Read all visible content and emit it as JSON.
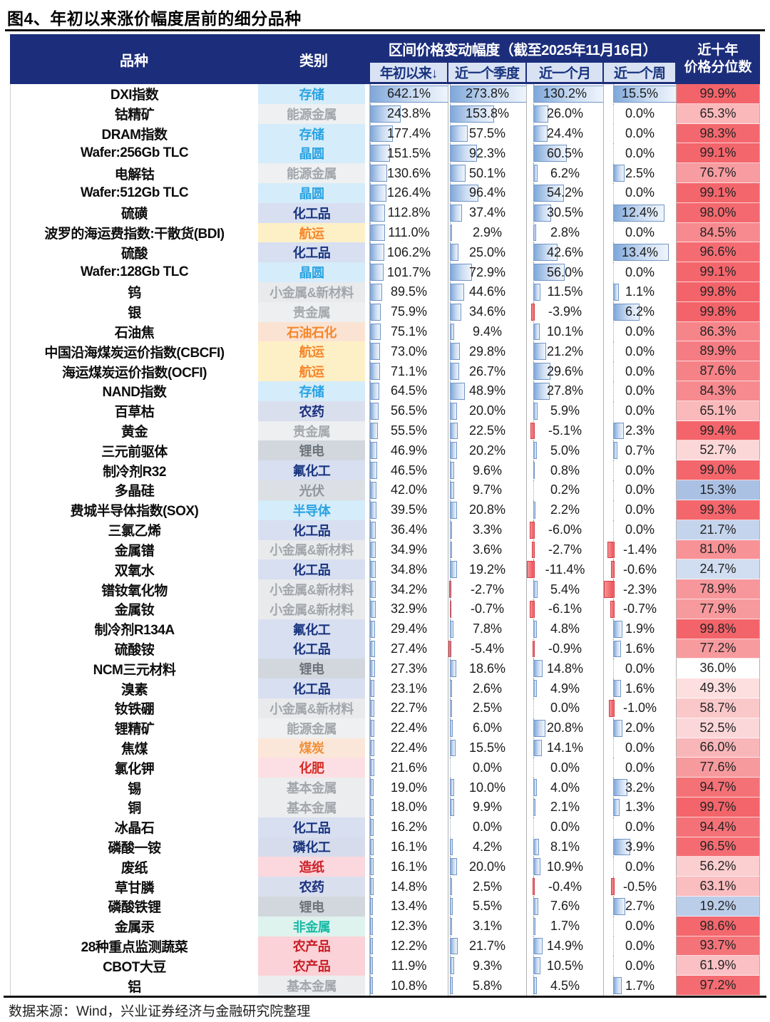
{
  "title": "图4、年初以来涨价幅度居前的细分品种",
  "source_note": "数据来源：Wind，兴业证券经济与金融研究院整理",
  "table": {
    "header": {
      "product": "品种",
      "category": "类别",
      "group": "区间价格变动幅度（截至2025年11月16日）",
      "periods": [
        "年初以来↓",
        "近一个季度",
        "近一个月",
        "近一个周"
      ],
      "percentile_line1": "近十年",
      "percentile_line2": "价格分位数"
    },
    "columns": [
      "品种",
      "类别",
      "年初以来",
      "近一个季度",
      "近一个月",
      "近一个周",
      "近十年价格分位数"
    ],
    "rows": [
      [
        "DXI指数",
        "存储",
        642.1,
        273.8,
        130.2,
        15.5,
        99.9
      ],
      [
        "钴精矿",
        "能源金属",
        243.8,
        153.8,
        26.0,
        0.0,
        65.3
      ],
      [
        "DRAM指数",
        "存储",
        177.4,
        57.5,
        24.4,
        0.0,
        98.3
      ],
      [
        "Wafer:256Gb TLC",
        "晶圆",
        151.5,
        92.3,
        60.5,
        0.0,
        99.1
      ],
      [
        "电解钴",
        "能源金属",
        130.6,
        50.1,
        6.2,
        2.5,
        76.7
      ],
      [
        "Wafer:512Gb TLC",
        "晶圆",
        126.4,
        96.4,
        54.2,
        0.0,
        99.1
      ],
      [
        "硫磺",
        "化工品",
        112.8,
        37.4,
        30.5,
        12.4,
        98.0
      ],
      [
        "波罗的海运费指数:干散货(BDI)",
        "航运",
        111.0,
        2.9,
        2.8,
        0.0,
        84.5
      ],
      [
        "硫酸",
        "化工品",
        106.2,
        25.0,
        42.6,
        13.4,
        96.6
      ],
      [
        "Wafer:128Gb TLC",
        "晶圆",
        101.7,
        72.9,
        56.0,
        0.0,
        99.1
      ],
      [
        "钨",
        "小金属&新材料",
        89.5,
        44.6,
        11.5,
        1.1,
        99.8
      ],
      [
        "银",
        "贵金属",
        75.9,
        34.6,
        -3.9,
        6.2,
        99.8
      ],
      [
        "石油焦",
        "石油石化",
        75.1,
        9.4,
        10.1,
        0.0,
        86.3
      ],
      [
        "中国沿海煤炭运价指数(CBCFI)",
        "航运",
        73.0,
        29.8,
        21.2,
        0.0,
        89.9
      ],
      [
        "海运煤炭运价指数(OCFI)",
        "航运",
        71.1,
        26.7,
        29.6,
        0.0,
        87.6
      ],
      [
        "NAND指数",
        "存储",
        64.5,
        48.9,
        27.8,
        0.0,
        84.3
      ],
      [
        "百草枯",
        "农药",
        56.5,
        20.0,
        5.9,
        0.0,
        65.1
      ],
      [
        "黄金",
        "贵金属",
        55.5,
        22.5,
        -5.1,
        2.3,
        99.4
      ],
      [
        "三元前驱体",
        "锂电",
        46.9,
        20.2,
        5.0,
        0.7,
        52.7
      ],
      [
        "制冷剂R32",
        "氟化工",
        46.5,
        9.6,
        0.8,
        0.0,
        99.0
      ],
      [
        "多晶硅",
        "光伏",
        42.0,
        9.7,
        0.2,
        0.0,
        15.3
      ],
      [
        "费城半导体指数(SOX)",
        "半导体",
        39.5,
        20.8,
        2.2,
        0.0,
        99.3
      ],
      [
        "三氯乙烯",
        "化工品",
        36.4,
        3.3,
        -6.0,
        0.0,
        21.7
      ],
      [
        "金属镨",
        "小金属&新材料",
        34.9,
        3.6,
        -2.7,
        -1.4,
        81.0
      ],
      [
        "双氧水",
        "化工品",
        34.8,
        19.2,
        -11.4,
        -0.6,
        24.7
      ],
      [
        "镨钕氧化物",
        "小金属&新材料",
        34.2,
        -2.7,
        5.4,
        -2.3,
        78.9
      ],
      [
        "金属钕",
        "小金属&新材料",
        32.9,
        -0.7,
        -6.1,
        -0.7,
        77.9
      ],
      [
        "制冷剂R134A",
        "氟化工",
        29.4,
        7.8,
        4.8,
        1.9,
        99.8
      ],
      [
        "硫酸铵",
        "化工品",
        27.4,
        -5.4,
        -0.9,
        1.6,
        77.2
      ],
      [
        "NCM三元材料",
        "锂电",
        27.3,
        18.6,
        14.8,
        0.0,
        36.0
      ],
      [
        "溴素",
        "化工品",
        23.1,
        2.6,
        4.9,
        1.6,
        49.3
      ],
      [
        "钕铁硼",
        "小金属&新材料",
        22.7,
        2.5,
        0.0,
        -1.0,
        58.7
      ],
      [
        "锂精矿",
        "能源金属",
        22.4,
        6.0,
        20.8,
        2.0,
        52.5
      ],
      [
        "焦煤",
        "煤炭",
        22.4,
        15.5,
        14.1,
        0.0,
        66.0
      ],
      [
        "氯化钾",
        "化肥",
        21.6,
        0.0,
        0.0,
        0.0,
        77.6
      ],
      [
        "锡",
        "基本金属",
        19.0,
        10.0,
        4.0,
        3.2,
        94.7
      ],
      [
        "铜",
        "基本金属",
        18.0,
        9.9,
        2.1,
        1.3,
        99.7
      ],
      [
        "冰晶石",
        "化工品",
        16.2,
        0.0,
        0.0,
        0.0,
        94.4
      ],
      [
        "磷酸一铵",
        "磷化工",
        16.1,
        4.2,
        8.1,
        3.9,
        96.5
      ],
      [
        "废纸",
        "造纸",
        16.1,
        20.0,
        10.9,
        0.0,
        56.2
      ],
      [
        "草甘膦",
        "农药",
        14.8,
        2.5,
        -0.4,
        -0.5,
        63.1
      ],
      [
        "磷酸铁锂",
        "锂电",
        13.4,
        5.5,
        7.6,
        2.7,
        19.2
      ],
      [
        "金属汞",
        "非金属",
        12.3,
        3.1,
        1.7,
        0.0,
        98.6
      ],
      [
        "28种重点监测蔬菜",
        "农产品",
        12.2,
        21.7,
        14.9,
        0.0,
        93.7
      ],
      [
        "CBOT大豆",
        "农产品",
        11.9,
        9.3,
        10.5,
        0.0,
        61.9
      ],
      [
        "铝",
        "基本金属",
        10.8,
        5.8,
        4.5,
        1.7,
        97.2
      ]
    ]
  },
  "category_colors": {
    "存储": {
      "bg": "#D5ECFA",
      "fg": "#2BA3E2"
    },
    "晶圆": {
      "bg": "#D5ECFA",
      "fg": "#2BA3E2"
    },
    "半导体": {
      "bg": "#D5ECFA",
      "fg": "#2BA3E2"
    },
    "能源金属": {
      "bg": "#EFF0F1",
      "fg": "#A2A6AB"
    },
    "贵金属": {
      "bg": "#EDEFF0",
      "fg": "#A5A9AD"
    },
    "小金属&新材料": {
      "bg": "#E9EAEC",
      "fg": "#A3A7AC"
    },
    "基本金属": {
      "bg": "#ECEDEF",
      "fg": "#A3A7AC"
    },
    "化工品": {
      "bg": "#D8DFF1",
      "fg": "#17337E"
    },
    "氟化工": {
      "bg": "#D8DFF1",
      "fg": "#17337E"
    },
    "农药": {
      "bg": "#DADFEE",
      "fg": "#1A2F7D"
    },
    "磷化工": {
      "bg": "#D6DCEC",
      "fg": "#17337E"
    },
    "锂电": {
      "bg": "#D2D7DE",
      "fg": "#6E747C"
    },
    "光伏": {
      "bg": "#DCDFE3",
      "fg": "#90959C"
    },
    "航运": {
      "bg": "#FEF0C6",
      "fg": "#F5862B"
    },
    "石油石化": {
      "bg": "#FBE3D3",
      "fg": "#F5862B"
    },
    "煤炭": {
      "bg": "#FBE7D9",
      "fg": "#F0913B"
    },
    "化肥": {
      "bg": "#FBDFE4",
      "fg": "#D42B23"
    },
    "造纸": {
      "bg": "#FAD8DD",
      "fg": "#CE2127"
    },
    "农产品": {
      "bg": "#FAD2D8",
      "fg": "#C81E25"
    },
    "非金属": {
      "bg": "#DFF3EE",
      "fg": "#19BBA6"
    }
  },
  "colors": {
    "header_bg": "#1C2E7B",
    "subheader_bg": "#D9E2F3",
    "subheader_fg": "#17337E",
    "scale_low": "#A9C0E4",
    "scale_mid": "#FFFFFF",
    "scale_high": "#F3646A",
    "scale_low_value": 15,
    "scale_mid_value": 36,
    "scale_high_value": 100
  }
}
